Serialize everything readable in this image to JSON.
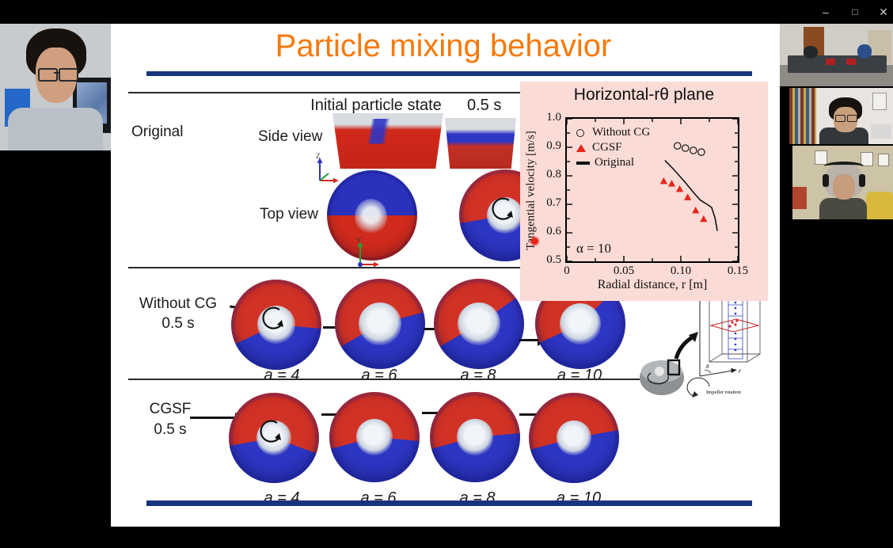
{
  "window": {
    "minimize_glyph": "–",
    "maximize_glyph": "□",
    "close_glyph": "✕"
  },
  "slide": {
    "title": "Particle mixing behavior",
    "header": {
      "initial_label": "Initial particle state",
      "time_label": "0.5 s"
    },
    "original": {
      "label": "Original",
      "side_view": "Side view",
      "top_view": "Top view"
    },
    "axis_icons": {
      "side_up": "Z",
      "top_up": "Y"
    },
    "rows": [
      {
        "label": "Without CG",
        "time": "0.5 s",
        "cases": [
          "a = 4",
          "a = 6",
          "a = 8",
          "a = 10"
        ]
      },
      {
        "label": "CGSF",
        "time": "0.5 s",
        "cases": [
          "a = 4",
          "a = 6",
          "a = 8",
          "a = 10"
        ]
      }
    ],
    "diagram": {
      "caption": "Impeller rotation",
      "z": "z",
      "r": "r",
      "theta": "θ"
    }
  },
  "inset": {
    "title": "Horizontal-rθ plane",
    "ylabel": "Tangential velocity [m/s]",
    "xlabel": "Radial distance, r [m]",
    "annotation": "α = 10",
    "legend": [
      {
        "label": "Without CG"
      },
      {
        "label": "CGSF"
      },
      {
        "label": "Original"
      }
    ],
    "yticks": [
      "1.0",
      "0.9",
      "0.8",
      "0.7",
      "0.6",
      "0.5"
    ],
    "xticks": [
      "0",
      "0.05",
      "0.10",
      "0.15"
    ]
  },
  "chart_data": {
    "type": "scatter",
    "title": "Horizontal-rθ plane",
    "xlabel": "Radial distance, r [m]",
    "ylabel": "Tangential velocity [m/s]",
    "xlim": [
      0,
      0.15
    ],
    "ylim": [
      0.5,
      1.0
    ],
    "xticks": [
      0,
      0.05,
      0.1,
      0.15
    ],
    "yticks": [
      0.5,
      0.6,
      0.7,
      0.8,
      0.9,
      1.0
    ],
    "annotation": "α = 10",
    "legend_position": "upper-left",
    "grid": false,
    "series": [
      {
        "name": "Without CG",
        "marker": "circle",
        "color": "#222222",
        "points": [
          [
            0.097,
            0.905
          ],
          [
            0.104,
            0.897
          ],
          [
            0.111,
            0.889
          ],
          [
            0.118,
            0.883
          ]
        ]
      },
      {
        "name": "CGSF",
        "marker": "triangle",
        "color": "#e8251a",
        "points": [
          [
            0.085,
            0.781
          ],
          [
            0.092,
            0.772
          ],
          [
            0.099,
            0.753
          ],
          [
            0.106,
            0.724
          ],
          [
            0.113,
            0.678
          ],
          [
            0.12,
            0.648
          ]
        ]
      },
      {
        "name": "Original",
        "marker": "line",
        "color": "#111111",
        "points": [
          [
            0.086,
            0.854
          ],
          [
            0.091,
            0.834
          ],
          [
            0.097,
            0.808
          ],
          [
            0.104,
            0.776
          ],
          [
            0.111,
            0.742
          ],
          [
            0.117,
            0.715
          ],
          [
            0.123,
            0.7
          ],
          [
            0.127,
            0.689
          ],
          [
            0.13,
            0.652
          ],
          [
            0.132,
            0.607
          ]
        ]
      }
    ]
  }
}
